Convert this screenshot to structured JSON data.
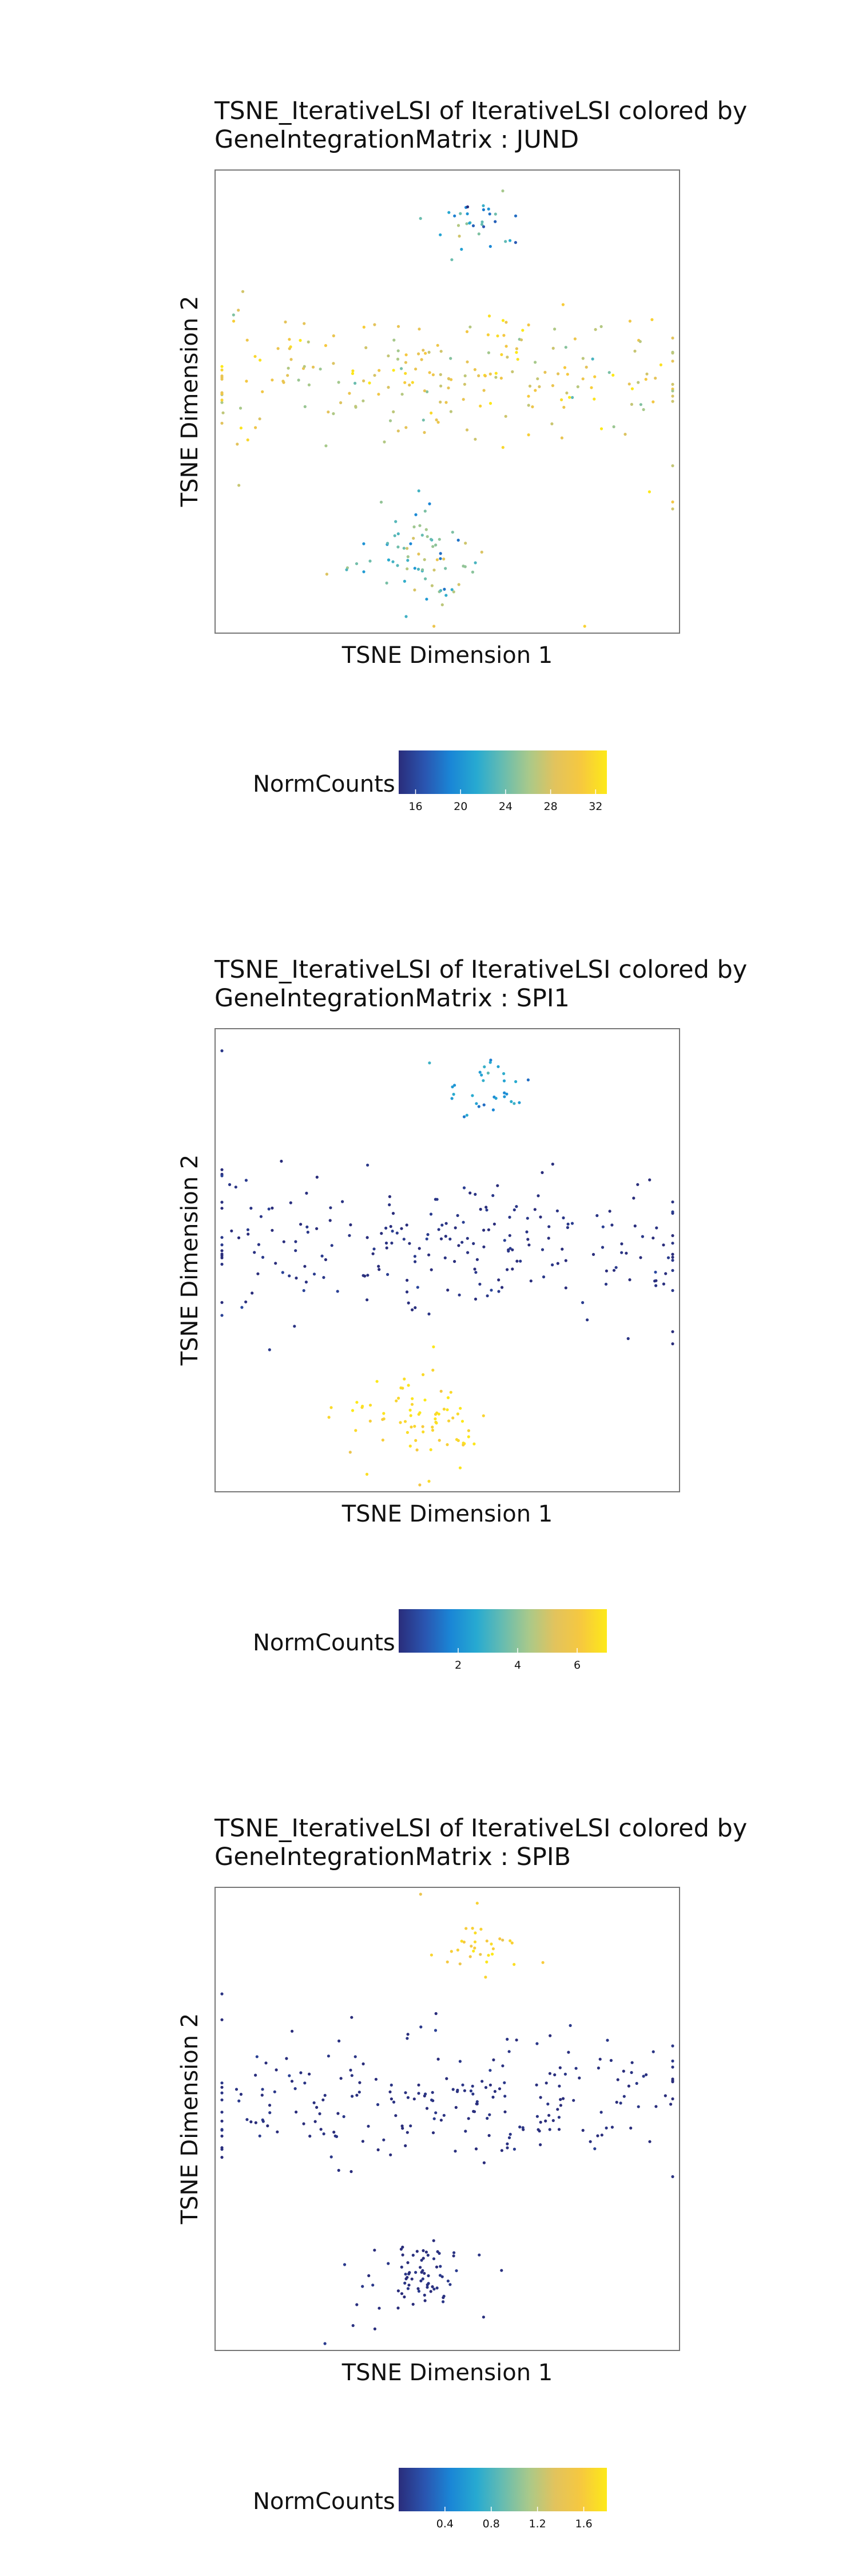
{
  "palette": [
    "#2a2d7b",
    "#2a55b0",
    "#1a86d6",
    "#27aad1",
    "#67bcb0",
    "#a9c98a",
    "#e2c35d",
    "#f6c83f",
    "#fde918"
  ],
  "frame_color": "#777777",
  "chart_data": [
    {
      "type": "scatter",
      "title_line1": "TSNE_IterativeLSI of IterativeLSI colored by",
      "title_line2": "GeneIntegrationMatrix : JUND",
      "xlabel": "TSNE Dimension 1",
      "ylabel": "TSNE Dimension 2",
      "legend_title": "NormCounts",
      "color_range": [
        14.5,
        33
      ],
      "ticks": [
        16,
        20,
        24,
        28,
        32
      ],
      "tick_labels": [
        "16",
        "20",
        "24",
        "28",
        "32"
      ],
      "cluster_means": [
        21,
        29,
        24
      ],
      "cluster_spread": [
        3,
        2.5,
        3
      ],
      "seed": 11
    },
    {
      "type": "scatter",
      "title_line1": "TSNE_IterativeLSI of IterativeLSI colored by",
      "title_line2": "GeneIntegrationMatrix : SPI1",
      "xlabel": "TSNE Dimension 1",
      "ylabel": "TSNE Dimension 2",
      "legend_title": "NormCounts",
      "color_range": [
        0,
        7
      ],
      "ticks": [
        2,
        4,
        6
      ],
      "tick_labels": [
        "2",
        "4",
        "6"
      ],
      "cluster_means": [
        2.2,
        0.1,
        6.6
      ],
      "cluster_spread": [
        0.5,
        0.15,
        0.3
      ],
      "seed": 23
    },
    {
      "type": "scatter",
      "title_line1": "TSNE_IterativeLSI of IterativeLSI colored by",
      "title_line2": "GeneIntegrationMatrix : SPIB",
      "xlabel": "TSNE Dimension 1",
      "ylabel": "TSNE Dimension 2",
      "legend_title": "NormCounts",
      "color_range": [
        0,
        1.8
      ],
      "ticks": [
        0.4,
        0.8,
        1.2,
        1.6
      ],
      "tick_labels": [
        "0.4",
        "0.8",
        "1.2",
        "1.6"
      ],
      "cluster_means": [
        1.65,
        0.02,
        0.02
      ],
      "cluster_spread": [
        0.1,
        0.03,
        0.03
      ],
      "seed": 37
    }
  ]
}
